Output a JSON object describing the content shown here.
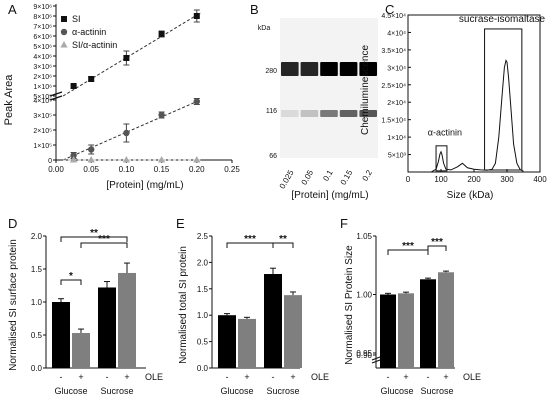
{
  "chart_data": [
    {
      "panel": "A",
      "type": "scatter",
      "xlabel": "[Protein] (mg/mL)",
      "ylabel": "Peak Area",
      "x_ticks": [
        "0.00",
        "0.05",
        "0.10",
        "0.15",
        "0.20",
        "0.25"
      ],
      "y_ticks_upper": [
        "5×10⁵",
        "1×10⁶",
        "2×10⁶",
        "3×10⁶",
        "4×10⁶",
        "5×10⁶",
        "6×10⁶",
        "7×10⁶",
        "8×10⁶",
        "9×10⁶"
      ],
      "y_ticks_lower": [
        "0",
        "1×10⁵",
        "2×10⁵",
        "3×10⁵",
        "4×10⁵"
      ],
      "series": [
        {
          "name": "SI",
          "marker": "square",
          "x": [
            0.025,
            0.05,
            0.1,
            0.15,
            0.2
          ],
          "y": [
            1000000.0,
            1700000.0,
            3800000.0,
            6200000.0,
            8000000.0
          ],
          "err": [
            100000.0,
            200000.0,
            700000.0,
            300000.0,
            600000.0
          ]
        },
        {
          "name": "α-actinin",
          "marker": "circle",
          "x": [
            0.025,
            0.05,
            0.1,
            0.15,
            0.2
          ],
          "y": [
            30000,
            70000,
            180000,
            300000,
            390000
          ],
          "err": [
            20000,
            30000,
            60000,
            20000,
            20000
          ]
        },
        {
          "name": "SI/α-actinin",
          "marker": "triangle",
          "x": [
            0.025,
            0.05,
            0.1,
            0.15,
            0.2
          ],
          "y": [
            0,
            0,
            0,
            0,
            0
          ],
          "err": [
            0,
            0,
            0,
            0,
            0
          ]
        }
      ]
    },
    {
      "panel": "B",
      "type": "table",
      "unit_label": "kDa",
      "markers": [
        "280",
        "116",
        "66"
      ],
      "lanes": [
        "0.025",
        "0.05",
        "0.1",
        "0.15",
        "0.2"
      ],
      "band_280_intensity": [
        0.85,
        0.85,
        1.0,
        1.0,
        1.0
      ],
      "band_116_intensity": [
        0.1,
        0.2,
        0.5,
        0.6,
        0.65
      ],
      "xlabel": "[Protein] (mg/mL)"
    },
    {
      "panel": "C",
      "type": "line",
      "xlabel": "Size (kDa)",
      "ylabel": "Chemiluminescence",
      "xlim": [
        0,
        400
      ],
      "ylim": [
        0,
        45000
      ],
      "x_ticks": [
        "0",
        "100",
        "200",
        "300",
        "400"
      ],
      "y_ticks": [
        "5×10³",
        "1×10⁴",
        "1.5×10⁴",
        "2×10⁴",
        "2.5×10⁴",
        "3×10⁴",
        "3.5×10⁴",
        "4×10⁴",
        "4.5×10⁴"
      ],
      "annotations": [
        "α-actinin",
        "sucrase-isomaltase"
      ],
      "x": [
        55,
        70,
        85,
        92,
        97,
        100,
        103,
        108,
        115,
        130,
        150,
        165,
        180,
        200,
        220,
        240,
        255,
        265,
        275,
        285,
        292,
        297,
        300,
        305,
        312,
        320,
        330,
        340,
        350
      ],
      "y": [
        0,
        0,
        800,
        3000,
        5200,
        5800,
        5000,
        2500,
        800,
        600,
        1500,
        2500,
        1200,
        800,
        600,
        500,
        800,
        2500,
        10000,
        22000,
        30000,
        32000,
        31500,
        27000,
        18000,
        8000,
        2500,
        700,
        200
      ]
    },
    {
      "panel": "D",
      "type": "bar",
      "ylabel": "Normalised SI surface protein",
      "ylim": [
        0.0,
        2.0
      ],
      "y_ticks": [
        "0.0",
        "0.5",
        "1.0",
        "1.5",
        "2.0"
      ],
      "categories": [
        "-",
        "+",
        "-",
        "+"
      ],
      "groups": [
        "Glucose",
        "Sucrose"
      ],
      "treatment_label": "OLE",
      "values": [
        1.0,
        0.53,
        1.22,
        1.44
      ],
      "err": [
        0.05,
        0.06,
        0.09,
        0.15
      ],
      "significance": [
        {
          "from": 0,
          "to": 1,
          "label": "*"
        },
        {
          "from": 1,
          "to": 3,
          "label": "***"
        },
        {
          "from": 0,
          "to": 3,
          "label": "**"
        }
      ]
    },
    {
      "panel": "E",
      "type": "bar",
      "ylabel": "Normalised total SI protein",
      "ylim": [
        0.0,
        2.5
      ],
      "y_ticks": [
        "0.0",
        "0.5",
        "1.0",
        "1.5",
        "2.0",
        "2.5"
      ],
      "categories": [
        "-",
        "+",
        "-",
        "+"
      ],
      "groups": [
        "Glucose",
        "Sucrose"
      ],
      "treatment_label": "OLE",
      "values": [
        1.0,
        0.93,
        1.78,
        1.38
      ],
      "err": [
        0.03,
        0.03,
        0.11,
        0.06
      ],
      "significance": [
        {
          "from": 0,
          "to": 2,
          "label": "***"
        },
        {
          "from": 2,
          "to": 3,
          "label": "**"
        }
      ]
    },
    {
      "panel": "F",
      "type": "bar",
      "ylabel": "Normalised SI Protein Size",
      "ylim": [
        0.9,
        1.05
      ],
      "y_ticks": [
        "0.90",
        "0.95",
        "1.00",
        "1.05"
      ],
      "categories": [
        "-",
        "+",
        "-",
        "+"
      ],
      "groups": [
        "Glucose",
        "Sucrose"
      ],
      "treatment_label": "OLE",
      "values": [
        1.0,
        1.001,
        1.013,
        1.019
      ],
      "err": [
        0.001,
        0.001,
        0.001,
        0.001
      ],
      "significance": [
        {
          "from": 0,
          "to": 2,
          "label": "***"
        },
        {
          "from": 2,
          "to": 3,
          "label": "***"
        }
      ]
    }
  ]
}
